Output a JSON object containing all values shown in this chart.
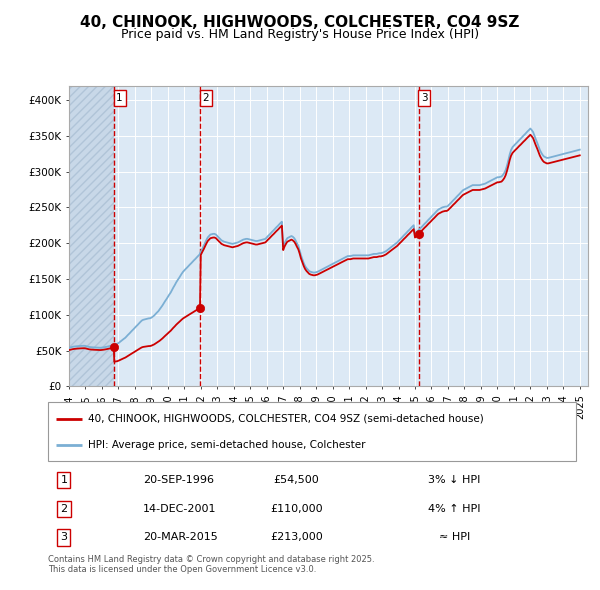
{
  "title": "40, CHINOOK, HIGHWOODS, COLCHESTER, CO4 9SZ",
  "subtitle": "Price paid vs. HM Land Registry's House Price Index (HPI)",
  "title_fontsize": 11,
  "subtitle_fontsize": 9,
  "background_color": "#ffffff",
  "plot_bg_color": "#dce9f5",
  "hatch_color": "#c8d8e8",
  "grid_color": "#ffffff",
  "red_line_color": "#cc0000",
  "blue_line_color": "#7bafd4",
  "dashed_vline_color": "#cc0000",
  "marker_color": "#cc0000",
  "marker_size": 6,
  "ylim": [
    0,
    420000
  ],
  "xlim_start": 1994.0,
  "xlim_end": 2025.5,
  "yticks": [
    0,
    50000,
    100000,
    150000,
    200000,
    250000,
    300000,
    350000,
    400000
  ],
  "ytick_labels": [
    "£0",
    "£50K",
    "£100K",
    "£150K",
    "£200K",
    "£250K",
    "£300K",
    "£350K",
    "£400K"
  ],
  "xticks": [
    1994,
    1995,
    1996,
    1997,
    1998,
    1999,
    2000,
    2001,
    2002,
    2003,
    2004,
    2005,
    2006,
    2007,
    2008,
    2009,
    2010,
    2011,
    2012,
    2013,
    2014,
    2015,
    2016,
    2017,
    2018,
    2019,
    2020,
    2021,
    2022,
    2023,
    2024,
    2025
  ],
  "sales": [
    {
      "date": 1996.72,
      "price": 54500,
      "label": "1",
      "note": "20-SEP-1996",
      "amount": "£54,500",
      "pct": "3% ↓ HPI"
    },
    {
      "date": 2001.95,
      "price": 110000,
      "label": "2",
      "note": "14-DEC-2001",
      "amount": "£110,000",
      "pct": "4% ↑ HPI"
    },
    {
      "date": 2015.22,
      "price": 213000,
      "label": "3",
      "note": "20-MAR-2015",
      "amount": "£213,000",
      "pct": "≈ HPI"
    }
  ],
  "legend_line1": "40, CHINOOK, HIGHWOODS, COLCHESTER, CO4 9SZ (semi-detached house)",
  "legend_line2": "HPI: Average price, semi-detached house, Colchester",
  "footer": "Contains HM Land Registry data © Crown copyright and database right 2025.\nThis data is licensed under the Open Government Licence v3.0.",
  "hpi_data": {
    "dates": [
      1994.0,
      1994.08,
      1994.17,
      1994.25,
      1994.33,
      1994.42,
      1994.5,
      1994.58,
      1994.67,
      1994.75,
      1994.83,
      1994.92,
      1995.0,
      1995.08,
      1995.17,
      1995.25,
      1995.33,
      1995.42,
      1995.5,
      1995.58,
      1995.67,
      1995.75,
      1995.83,
      1995.92,
      1996.0,
      1996.08,
      1996.17,
      1996.25,
      1996.33,
      1996.42,
      1996.5,
      1996.58,
      1996.67,
      1996.75,
      1996.83,
      1996.92,
      1997.0,
      1997.08,
      1997.17,
      1997.25,
      1997.33,
      1997.42,
      1997.5,
      1997.58,
      1997.67,
      1997.75,
      1997.83,
      1997.92,
      1998.0,
      1998.08,
      1998.17,
      1998.25,
      1998.33,
      1998.42,
      1998.5,
      1998.58,
      1998.67,
      1998.75,
      1998.83,
      1998.92,
      1999.0,
      1999.08,
      1999.17,
      1999.25,
      1999.33,
      1999.42,
      1999.5,
      1999.58,
      1999.67,
      1999.75,
      1999.83,
      1999.92,
      2000.0,
      2000.08,
      2000.17,
      2000.25,
      2000.33,
      2000.42,
      2000.5,
      2000.58,
      2000.67,
      2000.75,
      2000.83,
      2000.92,
      2001.0,
      2001.08,
      2001.17,
      2001.25,
      2001.33,
      2001.42,
      2001.5,
      2001.58,
      2001.67,
      2001.75,
      2001.83,
      2001.92,
      2002.0,
      2002.08,
      2002.17,
      2002.25,
      2002.33,
      2002.42,
      2002.5,
      2002.58,
      2002.67,
      2002.75,
      2002.83,
      2002.92,
      2003.0,
      2003.08,
      2003.17,
      2003.25,
      2003.33,
      2003.42,
      2003.5,
      2003.58,
      2003.67,
      2003.75,
      2003.83,
      2003.92,
      2004.0,
      2004.08,
      2004.17,
      2004.25,
      2004.33,
      2004.42,
      2004.5,
      2004.58,
      2004.67,
      2004.75,
      2004.83,
      2004.92,
      2005.0,
      2005.08,
      2005.17,
      2005.25,
      2005.33,
      2005.42,
      2005.5,
      2005.58,
      2005.67,
      2005.75,
      2005.83,
      2005.92,
      2006.0,
      2006.08,
      2006.17,
      2006.25,
      2006.33,
      2006.42,
      2006.5,
      2006.58,
      2006.67,
      2006.75,
      2006.83,
      2006.92,
      2007.0,
      2007.08,
      2007.17,
      2007.25,
      2007.33,
      2007.42,
      2007.5,
      2007.58,
      2007.67,
      2007.75,
      2007.83,
      2007.92,
      2008.0,
      2008.08,
      2008.17,
      2008.25,
      2008.33,
      2008.42,
      2008.5,
      2008.58,
      2008.67,
      2008.75,
      2008.83,
      2008.92,
      2009.0,
      2009.08,
      2009.17,
      2009.25,
      2009.33,
      2009.42,
      2009.5,
      2009.58,
      2009.67,
      2009.75,
      2009.83,
      2009.92,
      2010.0,
      2010.08,
      2010.17,
      2010.25,
      2010.33,
      2010.42,
      2010.5,
      2010.58,
      2010.67,
      2010.75,
      2010.83,
      2010.92,
      2011.0,
      2011.08,
      2011.17,
      2011.25,
      2011.33,
      2011.42,
      2011.5,
      2011.58,
      2011.67,
      2011.75,
      2011.83,
      2011.92,
      2012.0,
      2012.08,
      2012.17,
      2012.25,
      2012.33,
      2012.42,
      2012.5,
      2012.58,
      2012.67,
      2012.75,
      2012.83,
      2012.92,
      2013.0,
      2013.08,
      2013.17,
      2013.25,
      2013.33,
      2013.42,
      2013.5,
      2013.58,
      2013.67,
      2013.75,
      2013.83,
      2013.92,
      2014.0,
      2014.08,
      2014.17,
      2014.25,
      2014.33,
      2014.42,
      2014.5,
      2014.58,
      2014.67,
      2014.75,
      2014.83,
      2014.92,
      2015.0,
      2015.08,
      2015.17,
      2015.25,
      2015.33,
      2015.42,
      2015.5,
      2015.58,
      2015.67,
      2015.75,
      2015.83,
      2015.92,
      2016.0,
      2016.08,
      2016.17,
      2016.25,
      2016.33,
      2016.42,
      2016.5,
      2016.58,
      2016.67,
      2016.75,
      2016.83,
      2016.92,
      2017.0,
      2017.08,
      2017.17,
      2017.25,
      2017.33,
      2017.42,
      2017.5,
      2017.58,
      2017.67,
      2017.75,
      2017.83,
      2017.92,
      2018.0,
      2018.08,
      2018.17,
      2018.25,
      2018.33,
      2018.42,
      2018.5,
      2018.58,
      2018.67,
      2018.75,
      2018.83,
      2018.92,
      2019.0,
      2019.08,
      2019.17,
      2019.25,
      2019.33,
      2019.42,
      2019.5,
      2019.58,
      2019.67,
      2019.75,
      2019.83,
      2019.92,
      2020.0,
      2020.08,
      2020.17,
      2020.25,
      2020.33,
      2020.42,
      2020.5,
      2020.58,
      2020.67,
      2020.75,
      2020.83,
      2020.92,
      2021.0,
      2021.08,
      2021.17,
      2021.25,
      2021.33,
      2021.42,
      2021.5,
      2021.58,
      2021.67,
      2021.75,
      2021.83,
      2021.92,
      2022.0,
      2022.08,
      2022.17,
      2022.25,
      2022.33,
      2022.42,
      2022.5,
      2022.58,
      2022.67,
      2022.75,
      2022.83,
      2022.92,
      2023.0,
      2023.08,
      2023.17,
      2023.25,
      2023.33,
      2023.42,
      2023.5,
      2023.58,
      2023.67,
      2023.75,
      2023.83,
      2023.92,
      2024.0,
      2024.08,
      2024.17,
      2024.25,
      2024.33,
      2024.42,
      2024.5,
      2024.58,
      2024.67,
      2024.75,
      2024.83,
      2024.92,
      2025.0
    ],
    "values": [
      54000,
      54500,
      55000,
      55500,
      55800,
      56000,
      56200,
      56400,
      56500,
      56600,
      56700,
      56800,
      56500,
      56000,
      55500,
      55000,
      54800,
      54600,
      54500,
      54400,
      54300,
      54200,
      54100,
      54000,
      54200,
      54500,
      54800,
      55200,
      55600,
      56000,
      56500,
      57000,
      57600,
      58200,
      58800,
      59400,
      60500,
      62000,
      63500,
      65000,
      66500,
      68000,
      70000,
      72000,
      74000,
      76000,
      78000,
      80000,
      82000,
      84000,
      86000,
      88000,
      90000,
      92000,
      93000,
      93500,
      94000,
      94500,
      95000,
      95200,
      96000,
      97500,
      99000,
      101000,
      103000,
      105000,
      107500,
      110000,
      113000,
      116000,
      119000,
      122000,
      125000,
      128000,
      131000,
      134500,
      138000,
      141500,
      145000,
      148000,
      151000,
      154000,
      157000,
      160000,
      162000,
      164000,
      166000,
      168000,
      170000,
      172000,
      174000,
      176000,
      178000,
      180000,
      182000,
      184000,
      188000,
      192000,
      196000,
      200000,
      204000,
      208000,
      210000,
      212000,
      212500,
      213000,
      213000,
      212000,
      210000,
      208000,
      206000,
      204000,
      203000,
      202000,
      201500,
      201000,
      200500,
      200000,
      199500,
      199000,
      199500,
      200000,
      200500,
      201000,
      202000,
      203000,
      204000,
      205000,
      205500,
      206000,
      206000,
      205500,
      205000,
      204500,
      204000,
      203500,
      203000,
      203000,
      203500,
      204000,
      204500,
      205000,
      205500,
      206000,
      208000,
      210000,
      212000,
      214000,
      216000,
      218000,
      220000,
      222000,
      224000,
      226000,
      228000,
      230000,
      195000,
      200000,
      204000,
      207000,
      208000,
      209000,
      210000,
      209000,
      207000,
      204000,
      200000,
      196000,
      190000,
      183000,
      177000,
      172000,
      168000,
      165000,
      163000,
      161000,
      160000,
      159500,
      159000,
      159000,
      159500,
      160000,
      161000,
      162000,
      163000,
      164000,
      165000,
      166000,
      167000,
      168000,
      169000,
      170000,
      171000,
      172000,
      173000,
      174000,
      175000,
      176000,
      177000,
      178000,
      179000,
      180000,
      181000,
      182000,
      182000,
      182000,
      182500,
      183000,
      183000,
      183000,
      183000,
      183000,
      183000,
      183000,
      183000,
      183000,
      183000,
      183000,
      183000,
      183500,
      184000,
      184500,
      185000,
      185000,
      185000,
      185500,
      186000,
      186000,
      186500,
      187000,
      188000,
      189000,
      190500,
      192000,
      193500,
      195000,
      196500,
      198000,
      199500,
      201000,
      203000,
      205000,
      207000,
      209000,
      211000,
      213000,
      215000,
      217000,
      219000,
      221000,
      223000,
      225000,
      213000,
      215000,
      217000,
      219000,
      221000,
      223000,
      225000,
      227000,
      229000,
      231000,
      233000,
      235000,
      237000,
      239000,
      241000,
      243000,
      245000,
      247000,
      248000,
      249000,
      250000,
      250500,
      251000,
      251000,
      252000,
      254000,
      256000,
      258000,
      260000,
      262000,
      264000,
      266000,
      268000,
      270000,
      272000,
      274000,
      275000,
      276000,
      277000,
      278000,
      279000,
      280000,
      281000,
      281000,
      281000,
      281000,
      281000,
      281000,
      281500,
      282000,
      282500,
      283000,
      284000,
      285000,
      286000,
      287000,
      288000,
      289000,
      290000,
      291000,
      292000,
      292000,
      292500,
      293000,
      295000,
      298000,
      302000,
      308000,
      316000,
      324000,
      330000,
      334000,
      336000,
      338000,
      340000,
      342000,
      344000,
      346000,
      348000,
      350000,
      352000,
      354000,
      356000,
      358000,
      360000,
      358000,
      355000,
      350000,
      345000,
      340000,
      335000,
      330000,
      326000,
      323000,
      321000,
      320000,
      319000,
      319000,
      319500,
      320000,
      320500,
      321000,
      321500,
      322000,
      322500,
      323000,
      323500,
      324000,
      324500,
      325000,
      325500,
      326000,
      326500,
      327000,
      327500,
      328000,
      328500,
      329000,
      329500,
      330000,
      330500
    ]
  }
}
